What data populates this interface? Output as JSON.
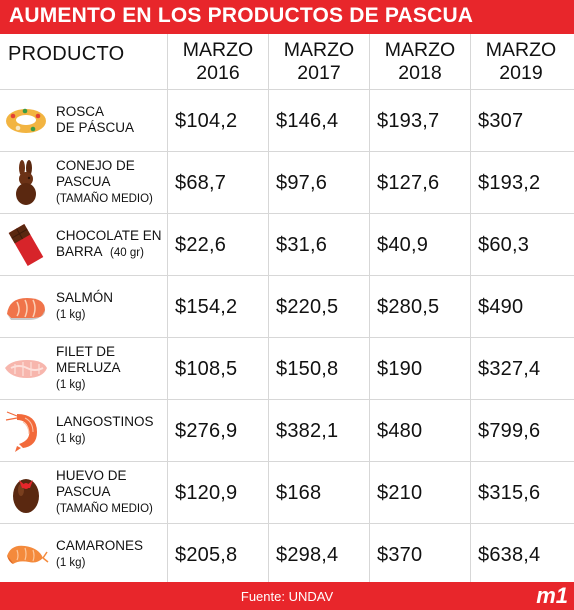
{
  "title": "AUMENTO EN LOS PRODUCTOS DE PASCUA",
  "header": {
    "product": "PRODUCTO",
    "years": [
      {
        "line1": "MARZO",
        "line2": "2016"
      },
      {
        "line1": "MARZO",
        "line2": "2017"
      },
      {
        "line1": "MARZO",
        "line2": "2018"
      },
      {
        "line1": "MARZO",
        "line2": "2019"
      }
    ]
  },
  "rows": [
    {
      "line1": "ROSCA",
      "line2": "DE PÁSCUA",
      "line3": "",
      "icon": "rosca-icon",
      "prices": [
        "$104,2",
        "$146,4",
        "$193,7",
        "$307"
      ]
    },
    {
      "line1": "CONEJO DE",
      "line2": "PASCUA",
      "line3": "(TAMAÑO MEDIO)",
      "icon": "chocolate-bunny-icon",
      "prices": [
        "$68,7",
        "$97,6",
        "$127,6",
        "$193,2"
      ]
    },
    {
      "line1": "CHOCOLATE EN",
      "line2": "BARRA",
      "line2b": "(40 gr)",
      "line3": "",
      "icon": "chocolate-bar-icon",
      "prices": [
        "$22,6",
        "$31,6",
        "$40,9",
        "$60,3"
      ]
    },
    {
      "line1": "SALMÓN",
      "line2": "(1 kg)",
      "line3": "",
      "icon": "salmon-icon",
      "prices": [
        "$154,2",
        "$220,5",
        "$280,5",
        "$490"
      ]
    },
    {
      "line1": "FILET DE",
      "line2": "MERLUZA",
      "line3": "(1 kg)",
      "icon": "fish-fillet-icon",
      "prices": [
        "$108,5",
        "$150,8",
        "$190",
        "$327,4"
      ]
    },
    {
      "line1": "LANGOSTINOS",
      "line2": "(1 kg)",
      "line3": "",
      "icon": "prawn-icon",
      "prices": [
        "$276,9",
        "$382,1",
        "$480",
        "$799,6"
      ]
    },
    {
      "line1": "HUEVO DE",
      "line2": "PASCUA",
      "line3": "(TAMAÑO MEDIO)",
      "icon": "easter-egg-icon",
      "prices": [
        "$120,9",
        "$168",
        "$210",
        "$315,6"
      ]
    },
    {
      "line1": "CAMARONES",
      "line2": "(1 kg)",
      "line3": "",
      "icon": "shrimp-icon",
      "prices": [
        "$205,8",
        "$298,4",
        "$370",
        "$638,4"
      ]
    }
  ],
  "footer": {
    "source": "Fuente: UNDAV",
    "logo": "m1"
  },
  "colors": {
    "accent": "#e8262b",
    "grid": "#d7d7d7"
  }
}
